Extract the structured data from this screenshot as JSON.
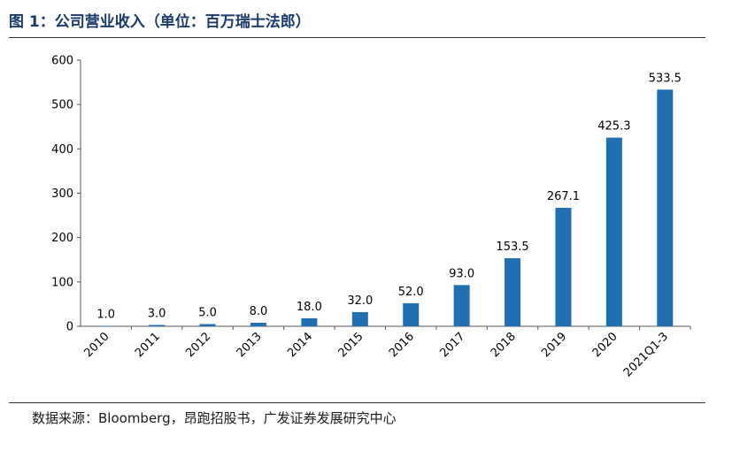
{
  "header": {
    "title": "图 1：公司营业收入（单位：百万瑞士法郎）"
  },
  "footer": {
    "source": "数据来源：Bloomberg，昂跑招股书，广发证券发展研究中心"
  },
  "colors": {
    "bar": "#1f6fb2",
    "axis": "#555555",
    "title": "#1a3a6b"
  },
  "chart_data": {
    "type": "bar",
    "title": "",
    "xlabel": "",
    "ylabel": "",
    "categories": [
      "2010",
      "2011",
      "2012",
      "2013",
      "2014",
      "2015",
      "2016",
      "2017",
      "2018",
      "2019",
      "2020",
      "2021Q1-3"
    ],
    "values": [
      1.0,
      3.0,
      5.0,
      8.0,
      18.0,
      32.0,
      52.0,
      93.0,
      153.5,
      267.1,
      425.3,
      533.5
    ],
    "data_labels": [
      "1.0",
      "3.0",
      "5.0",
      "8.0",
      "18.0",
      "32.0",
      "52.0",
      "93.0",
      "153.5",
      "267.1",
      "425.3",
      "533.5"
    ],
    "ylim": [
      0,
      600
    ],
    "yticks": [
      "0",
      "100",
      "200",
      "300",
      "400",
      "500",
      "600"
    ],
    "grid": false,
    "legend": "none"
  }
}
